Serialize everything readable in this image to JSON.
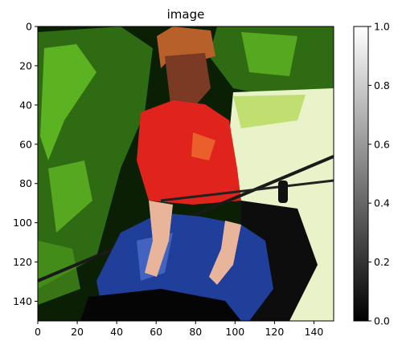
{
  "chart_data": {
    "type": "heatmap",
    "title": "image",
    "xlabel": "",
    "ylabel": "",
    "image_size": [
      150,
      150
    ],
    "xlim": [
      0,
      150
    ],
    "ylim": [
      150,
      0
    ],
    "x_ticks": [
      0,
      20,
      40,
      60,
      80,
      100,
      120,
      140
    ],
    "y_ticks": [
      0,
      20,
      40,
      60,
      80,
      100,
      120,
      140
    ],
    "grid": false,
    "image_content": "photo",
    "colorbar": {
      "colormap": "gray",
      "range": [
        0.0,
        1.0
      ],
      "ticks": [
        "0.0",
        "0.2",
        "0.4",
        "0.6",
        "0.8",
        "1.0"
      ]
    }
  },
  "colors": {
    "foliage_dark": "#0b1f05",
    "foliage_mid": "#2f6b12",
    "foliage_bright": "#6fd12a",
    "water": "#e9f2c8",
    "jacket_red": "#e0231c",
    "jeans_blue": "#1f3f9a",
    "skin": "#e8b59a",
    "hair": "#b8602a",
    "dark": "#050505"
  }
}
